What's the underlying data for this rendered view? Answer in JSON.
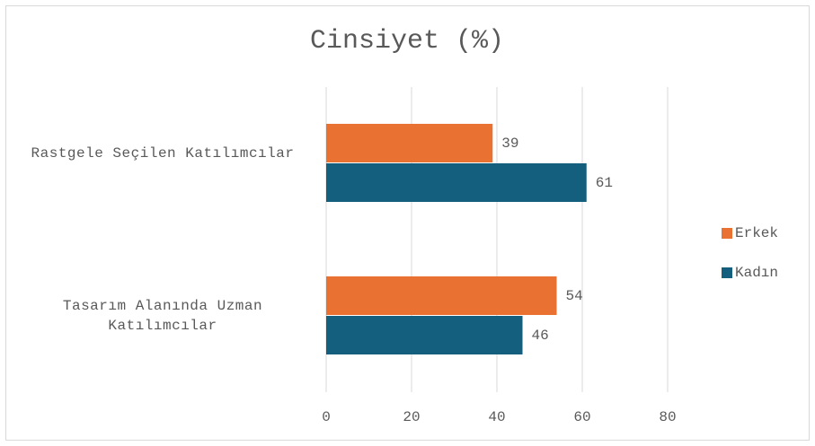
{
  "chart_data": {
    "type": "hbar",
    "title": "Cinsiyet (%)",
    "categories": [
      "Rastgele Seçilen Katılımcılar",
      "Tasarım Alanında Uzman Katılımcılar"
    ],
    "series": [
      {
        "name": "Erkek",
        "color": "#e97132",
        "values": [
          39,
          54
        ]
      },
      {
        "name": "Kadın",
        "color": "#145e7e",
        "values": [
          61,
          46
        ]
      }
    ],
    "xlim": [
      0,
      80
    ],
    "xticks": [
      0,
      20,
      40,
      60,
      80
    ],
    "grid": true,
    "legend": "right"
  }
}
